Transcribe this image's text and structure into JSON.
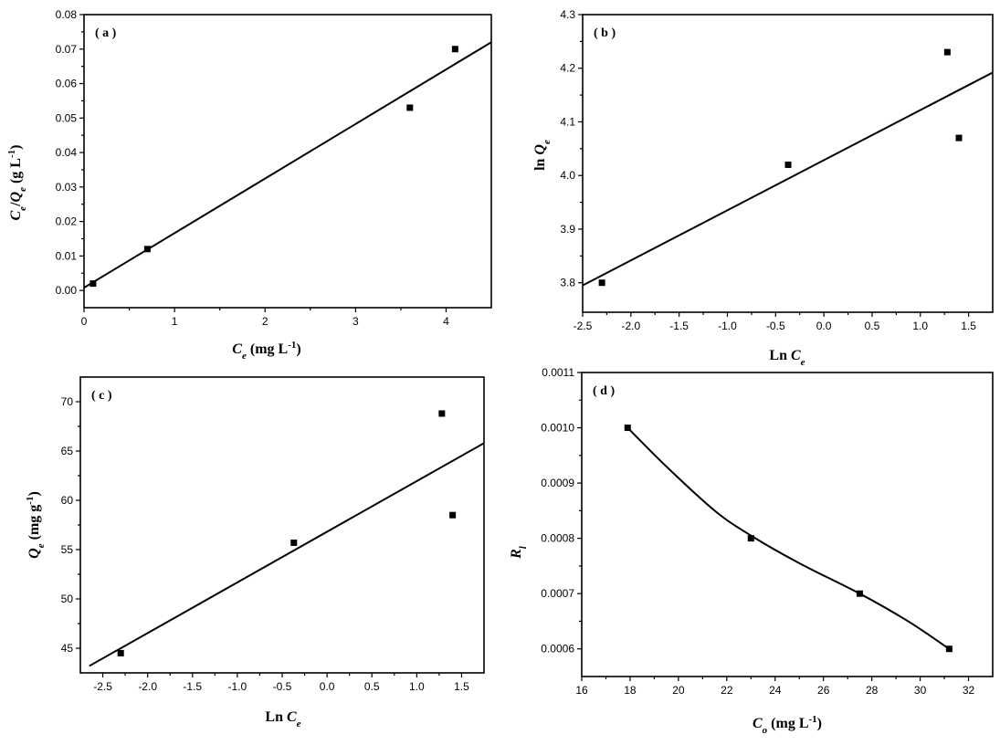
{
  "chart_data": [
    {
      "id": "a",
      "type": "scatter",
      "panel_label": "( a )",
      "xlabel": {
        "main": "C",
        "sub": "e",
        "rest": " (mg L",
        "sup": "-1",
        "end": ")"
      },
      "ylabel": {
        "p1": "C",
        "s1": "e",
        "p2": "/Q",
        "s2": "e",
        "p3": " (g L",
        "sup": "-1",
        "end": ")"
      },
      "xlim": [
        0,
        4.5
      ],
      "ylim": [
        -0.005,
        0.08
      ],
      "xticks": [
        0,
        1,
        2,
        3,
        4
      ],
      "xticklabels": [
        "0",
        "1",
        "2",
        "3",
        "4"
      ],
      "yticks": [
        0.0,
        0.01,
        0.02,
        0.03,
        0.04,
        0.05,
        0.06,
        0.07,
        0.08
      ],
      "yticklabels": [
        "0.00",
        "0.01",
        "0.02",
        "0.03",
        "0.04",
        "0.05",
        "0.06",
        "0.07",
        "0.08"
      ],
      "points": [
        [
          0.1,
          0.002
        ],
        [
          0.7,
          0.012
        ],
        [
          3.6,
          0.053
        ],
        [
          4.1,
          0.07
        ]
      ],
      "fit": {
        "kind": "line",
        "from": [
          0,
          0.0008
        ],
        "to": [
          4.5,
          0.072
        ]
      }
    },
    {
      "id": "b",
      "type": "scatter",
      "panel_label": "( b )",
      "xlabel": {
        "main": "Ln C",
        "sub": "e",
        "rest": "",
        "sup": "",
        "end": ""
      },
      "ylabel": {
        "p1": "ln  Q",
        "s1": "e",
        "p2": "",
        "s2": "",
        "p3": "",
        "sup": "",
        "end": ""
      },
      "xlim": [
        -2.5,
        1.75
      ],
      "ylim": [
        3.745,
        4.3
      ],
      "xticks": [
        -2.5,
        -2.0,
        -1.5,
        -1.0,
        -0.5,
        0.0,
        0.5,
        1.0,
        1.5
      ],
      "xticklabels": [
        "-2.5",
        "-2.0",
        "-1.5",
        "-1.0",
        "-0.5",
        "0.0",
        "0.5",
        "1.0",
        "1.5"
      ],
      "yticks": [
        3.8,
        3.9,
        4.0,
        4.1,
        4.2,
        4.3
      ],
      "yticklabels": [
        "3.8",
        "3.9",
        "4.0",
        "4.1",
        "4.2",
        "4.3"
      ],
      "points": [
        [
          -2.3,
          3.8
        ],
        [
          -0.37,
          4.02
        ],
        [
          1.28,
          4.23
        ],
        [
          1.4,
          4.07
        ]
      ],
      "fit": {
        "kind": "line",
        "from": [
          -2.5,
          3.795
        ],
        "to": [
          1.75,
          4.192
        ]
      }
    },
    {
      "id": "c",
      "type": "scatter",
      "panel_label": "( c )",
      "xlabel": {
        "main": "Ln C",
        "sub": "e",
        "rest": "",
        "sup": "",
        "end": ""
      },
      "ylabel": {
        "p1": "Q",
        "s1": "e",
        "p2": "",
        "s2": "",
        "p3": " (mg g",
        "sup": "-1",
        "end": ")"
      },
      "xlim": [
        -2.75,
        1.75
      ],
      "ylim": [
        42.5,
        72.5
      ],
      "xticks": [
        -2.5,
        -2.0,
        -1.5,
        -1.0,
        -0.5,
        0.0,
        0.5,
        1.0,
        1.5
      ],
      "xticklabels": [
        "-2.5",
        "-2.0",
        "-1.5",
        "-1.0",
        "-0.5",
        "0.0",
        "0.5",
        "1.0",
        "1.5"
      ],
      "yticks": [
        45,
        50,
        55,
        60,
        65,
        70
      ],
      "yticklabels": [
        "45",
        "50",
        "55",
        "60",
        "65",
        "70"
      ],
      "points": [
        [
          -2.3,
          44.5
        ],
        [
          -0.37,
          55.7
        ],
        [
          1.28,
          68.8
        ],
        [
          1.4,
          58.5
        ]
      ],
      "fit": {
        "kind": "line",
        "from": [
          -2.65,
          43.2
        ],
        "to": [
          1.75,
          65.8
        ]
      }
    },
    {
      "id": "d",
      "type": "line",
      "panel_label": "( d )",
      "xlabel": {
        "main": "C",
        "sub": "o",
        "rest": " (mg L",
        "sup": "-1",
        "end": ")"
      },
      "ylabel": {
        "p1": "R",
        "s1": "l",
        "p2": "",
        "s2": "",
        "p3": "",
        "sup": "",
        "end": ""
      },
      "xlim": [
        16,
        33
      ],
      "ylim": [
        0.00055,
        0.0011
      ],
      "xticks": [
        16,
        18,
        20,
        22,
        24,
        26,
        28,
        30,
        32
      ],
      "xticklabels": [
        "16",
        "18",
        "20",
        "22",
        "24",
        "26",
        "28",
        "30",
        "32"
      ],
      "yticks": [
        0.0006,
        0.0007,
        0.0008,
        0.0009,
        0.001,
        0.0011
      ],
      "yticklabels": [
        "0.0006",
        "0.0007",
        "0.0008",
        "0.0009",
        "0.0010",
        "0.0011"
      ],
      "points": [
        [
          17.9,
          0.001
        ],
        [
          23.0,
          0.0008
        ],
        [
          27.5,
          0.0007
        ],
        [
          31.2,
          0.0006
        ]
      ],
      "fit": {
        "kind": "curve",
        "points": [
          [
            17.9,
            0.001
          ],
          [
            19.5,
            0.00093
          ],
          [
            21.5,
            0.00085
          ],
          [
            23.0,
            0.000805
          ],
          [
            25.0,
            0.000755
          ],
          [
            27.5,
            0.0007
          ],
          [
            29.5,
            0.00065
          ],
          [
            31.2,
            0.0006
          ]
        ]
      }
    }
  ]
}
